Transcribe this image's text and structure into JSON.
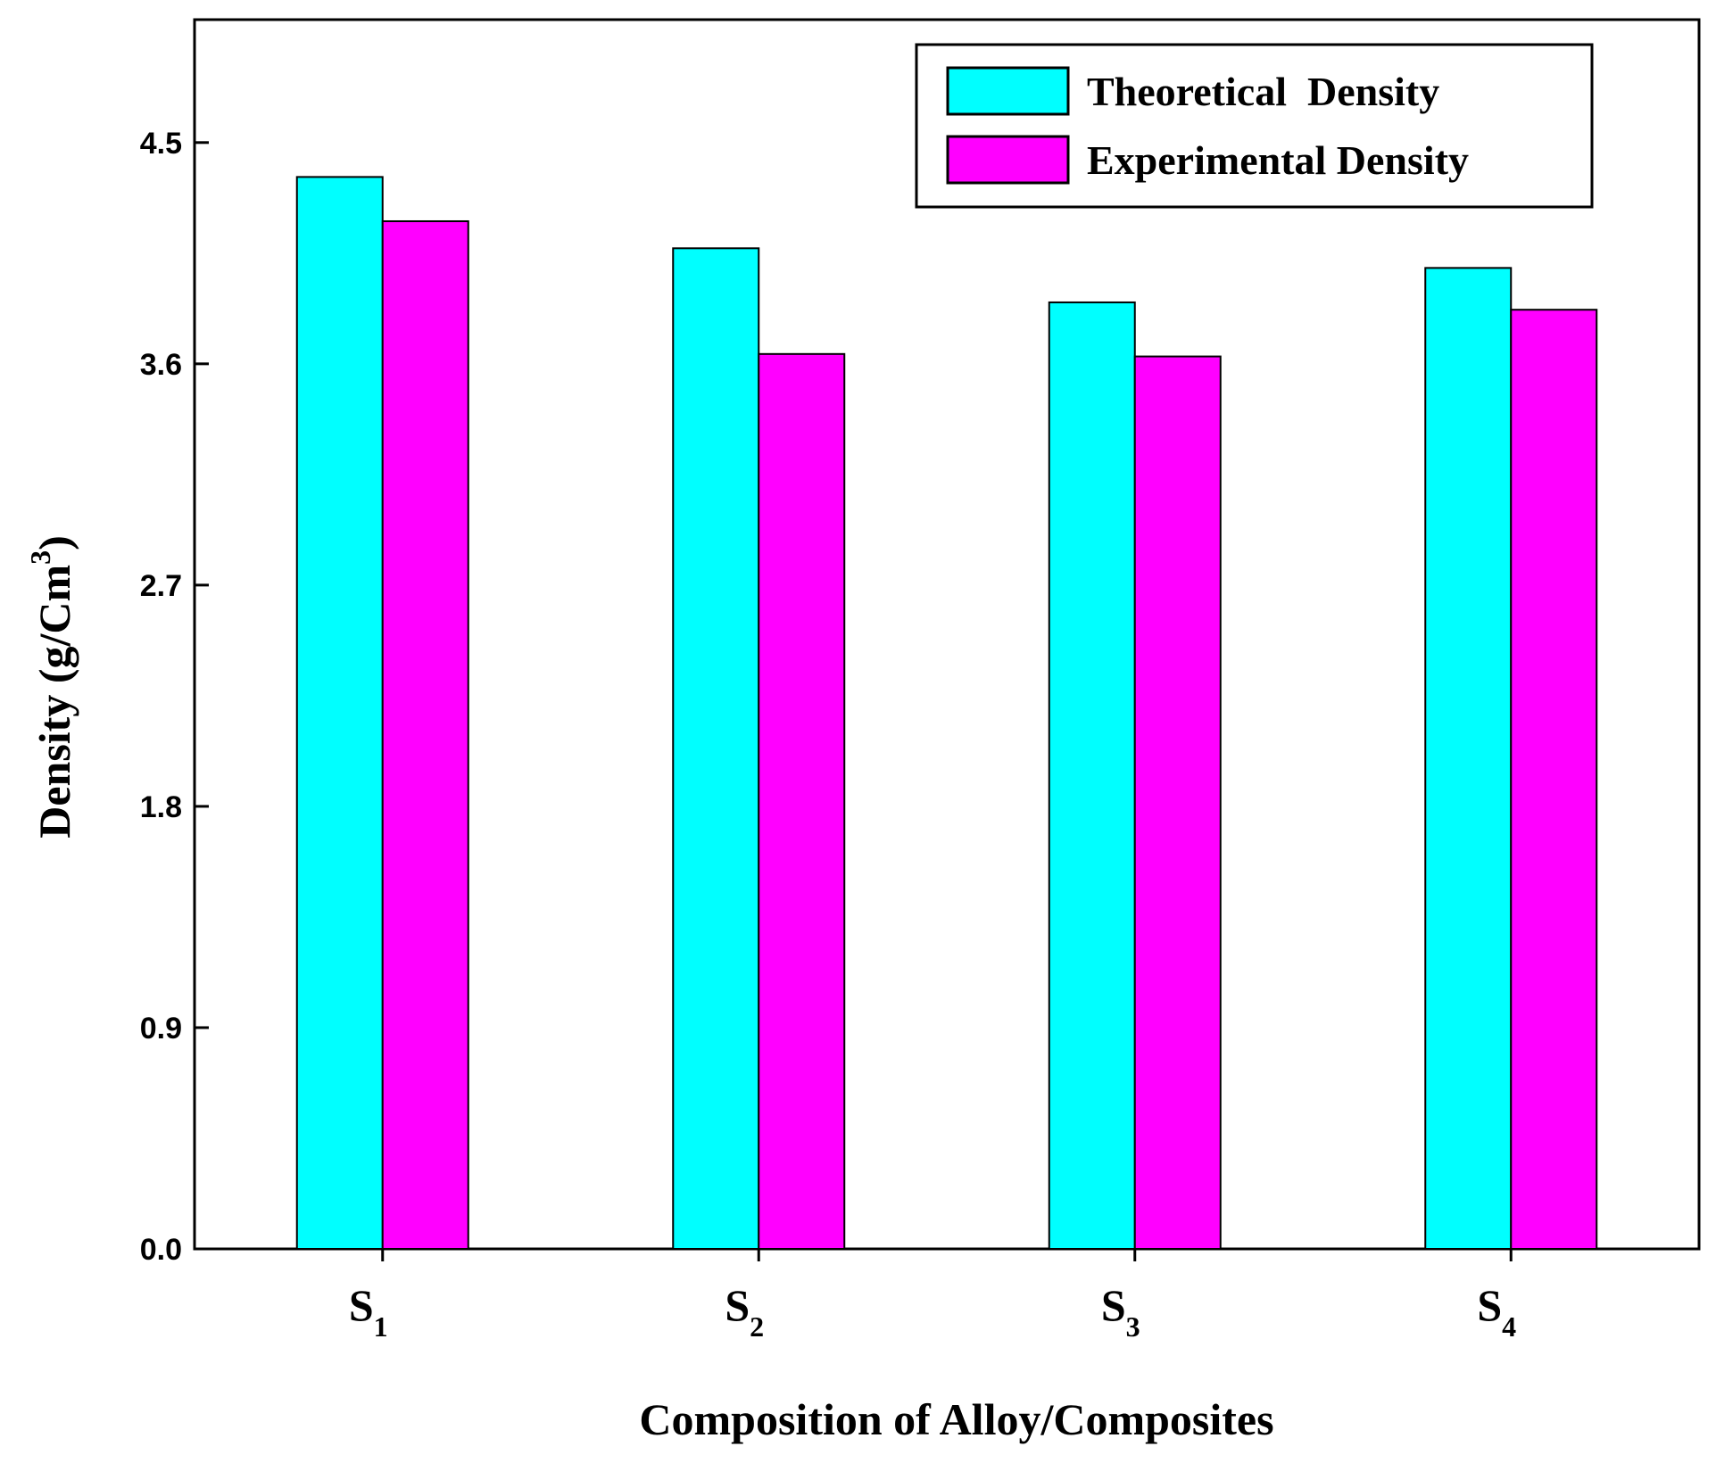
{
  "chart_data": {
    "type": "bar",
    "categories": [
      {
        "main": "S",
        "sub": "1"
      },
      {
        "main": "S",
        "sub": "2"
      },
      {
        "main": "S",
        "sub": "3"
      },
      {
        "main": "S",
        "sub": "4"
      }
    ],
    "series": [
      {
        "name": "Theoretical  Density",
        "color": "#00ffff",
        "values": [
          4.36,
          4.07,
          3.85,
          3.99
        ]
      },
      {
        "name": "Experimental Density",
        "color": "#ff00ff",
        "values": [
          4.18,
          3.64,
          3.63,
          3.82
        ]
      }
    ],
    "xlabel": "Composition of Alloy/Composites",
    "ylabel": {
      "main": "Density (g/Cm",
      "sup": "3",
      "close": ")"
    },
    "ylim": [
      0,
      5.0
    ],
    "yticks": [
      "0.0",
      "0.9",
      "1.8",
      "2.7",
      "3.6",
      "4.5"
    ],
    "legend_position": "top-right",
    "grid": false
  }
}
